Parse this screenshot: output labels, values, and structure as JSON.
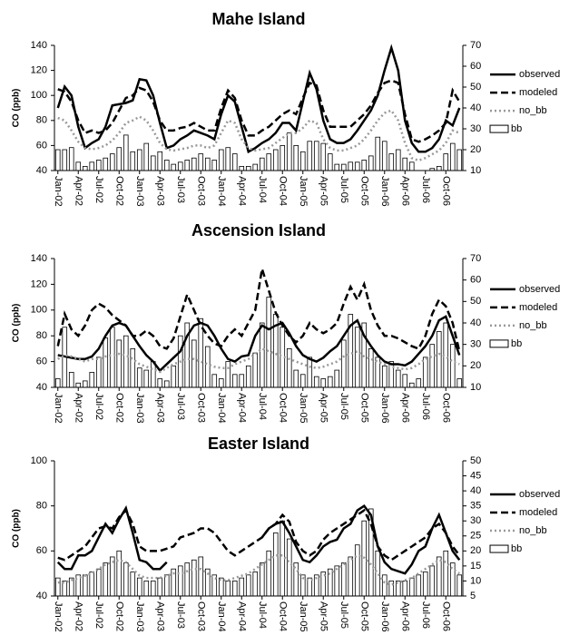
{
  "chart_data": [
    {
      "type": "combo",
      "title": "Mahe Island",
      "y_label": "CO (ppb)",
      "categories": [
        "Jan-02",
        null,
        null,
        "Apr-02",
        null,
        null,
        "Jul-02",
        null,
        null,
        "Oct-02",
        null,
        null,
        "Jan-03",
        null,
        null,
        "Apr-03",
        null,
        null,
        "Jul-03",
        null,
        null,
        "Oct-03",
        null,
        null,
        "Jan-04",
        null,
        null,
        "Apr-04",
        null,
        null,
        "Jul-04",
        null,
        null,
        "Oct-04",
        null,
        null,
        "Jan-05",
        null,
        null,
        "Apr-05",
        null,
        null,
        "Jul-05",
        null,
        null,
        "Oct-05",
        null,
        null,
        "Jan-06",
        null,
        null,
        "Apr-06",
        null,
        null,
        "Jul-06",
        null,
        null,
        "Oct-06",
        null,
        null
      ],
      "ylim": [
        40,
        140
      ],
      "yticks": [
        40,
        60,
        80,
        100,
        120,
        140
      ],
      "y2lim": [
        10,
        70
      ],
      "y2ticks": [
        10,
        20,
        30,
        40,
        50,
        60,
        70
      ],
      "series": [
        {
          "name": "observed",
          "type": "line",
          "line_style": "solid",
          "color": "#000000",
          "values": [
            90,
            107,
            100,
            75,
            58,
            62,
            65,
            75,
            92,
            93,
            94,
            96,
            113,
            112,
            100,
            78,
            58,
            60,
            65,
            68,
            72,
            70,
            68,
            65,
            85,
            100,
            95,
            75,
            55,
            58,
            62,
            65,
            70,
            78,
            78,
            72,
            95,
            118,
            105,
            80,
            65,
            62,
            62,
            65,
            72,
            80,
            88,
            100,
            120,
            138,
            120,
            80,
            62,
            55,
            55,
            58,
            65,
            80,
            76,
            90
          ]
        },
        {
          "name": "modeled",
          "type": "line",
          "line_style": "dashed",
          "color": "#000000",
          "values": [
            105,
            103,
            95,
            80,
            70,
            72,
            70,
            72,
            78,
            88,
            98,
            100,
            106,
            104,
            95,
            80,
            72,
            72,
            74,
            75,
            78,
            75,
            72,
            72,
            90,
            104,
            98,
            80,
            68,
            68,
            72,
            75,
            80,
            85,
            88,
            85,
            98,
            110,
            108,
            88,
            75,
            75,
            75,
            75,
            80,
            85,
            92,
            102,
            110,
            112,
            110,
            85,
            65,
            63,
            65,
            68,
            72,
            78,
            104,
            95
          ]
        },
        {
          "name": "no_bb",
          "type": "line",
          "line_style": "dotted",
          "color": "#999999",
          "values": [
            82,
            80,
            72,
            63,
            58,
            57,
            58,
            60,
            64,
            70,
            78,
            80,
            83,
            80,
            72,
            62,
            57,
            56,
            57,
            58,
            60,
            60,
            58,
            60,
            70,
            80,
            78,
            65,
            58,
            56,
            57,
            58,
            62,
            66,
            70,
            70,
            74,
            80,
            78,
            65,
            58,
            56,
            56,
            58,
            60,
            65,
            72,
            80,
            86,
            88,
            80,
            62,
            50,
            48,
            50,
            53,
            56,
            62,
            72,
            70
          ]
        },
        {
          "name": "bb",
          "type": "bar",
          "axis": "y2",
          "color": "#ffffff",
          "values": [
            20,
            20,
            21,
            14,
            12,
            14,
            15,
            16,
            18,
            21,
            27,
            19,
            20,
            23,
            17,
            19,
            15,
            13,
            14,
            15,
            16,
            18,
            16,
            15,
            20,
            21,
            18,
            12,
            12,
            13,
            16,
            18,
            20,
            22,
            28,
            22,
            19,
            24,
            24,
            23,
            18,
            13,
            13,
            14,
            14,
            15,
            17,
            26,
            24,
            18,
            20,
            16,
            14,
            10,
            10,
            11,
            12,
            18,
            23,
            20
          ]
        }
      ]
    },
    {
      "type": "combo",
      "title": "Ascension Island",
      "y_label": "CO (ppb)",
      "categories": [
        "Jan-02",
        null,
        null,
        "Apr-02",
        null,
        null,
        "Jul-02",
        null,
        null,
        "Oct-02",
        null,
        null,
        "Jan-03",
        null,
        null,
        "Apr-03",
        null,
        null,
        "Jul-03",
        null,
        null,
        "Oct-03",
        null,
        null,
        "Jan-04",
        null,
        null,
        "Apr-04",
        null,
        null,
        "Jul-04",
        null,
        null,
        "Oct-04",
        null,
        null,
        "Jan-05",
        null,
        null,
        "Apr-05",
        null,
        null,
        "Jul-05",
        null,
        null,
        "Oct-05",
        null,
        null,
        "Jan-06",
        null,
        null,
        "Apr-06",
        null,
        null,
        "Jul-06",
        null,
        null,
        "Oct-06",
        null,
        null
      ],
      "ylim": [
        40,
        140
      ],
      "yticks": [
        40,
        60,
        80,
        100,
        120,
        140
      ],
      "y2lim": [
        10,
        70
      ],
      "y2ticks": [
        10,
        20,
        30,
        40,
        50,
        60,
        70
      ],
      "series": [
        {
          "name": "observed",
          "type": "line",
          "line_style": "solid",
          "color": "#000000",
          "values": [
            65,
            64,
            63,
            62,
            62,
            64,
            70,
            80,
            88,
            90,
            88,
            80,
            72,
            65,
            60,
            53,
            58,
            63,
            68,
            80,
            88,
            90,
            88,
            80,
            70,
            62,
            60,
            64,
            65,
            80,
            88,
            85,
            88,
            90,
            82,
            72,
            65,
            62,
            60,
            63,
            68,
            72,
            80,
            88,
            92,
            80,
            72,
            65,
            60,
            58,
            58,
            57,
            60,
            66,
            72,
            80,
            92,
            95,
            80,
            65
          ]
        },
        {
          "name": "modeled",
          "type": "line",
          "line_style": "dashed",
          "color": "#000000",
          "values": [
            72,
            97,
            85,
            80,
            88,
            100,
            105,
            102,
            96,
            92,
            88,
            80,
            80,
            84,
            80,
            72,
            70,
            78,
            95,
            112,
            100,
            88,
            80,
            74,
            72,
            80,
            85,
            80,
            90,
            100,
            132,
            115,
            98,
            88,
            80,
            75,
            80,
            90,
            85,
            82,
            85,
            90,
            105,
            118,
            108,
            120,
            100,
            88,
            80,
            80,
            78,
            75,
            72,
            70,
            80,
            97,
            108,
            103,
            90,
            68
          ]
        },
        {
          "name": "no_bb",
          "type": "line",
          "line_style": "dotted",
          "color": "#999999",
          "values": [
            62,
            65,
            64,
            62,
            60,
            62,
            62,
            64,
            65,
            66,
            65,
            62,
            58,
            56,
            54,
            52,
            55,
            58,
            60,
            62,
            62,
            60,
            58,
            56,
            55,
            55,
            58,
            60,
            62,
            66,
            70,
            68,
            66,
            64,
            62,
            60,
            58,
            56,
            55,
            56,
            58,
            60,
            64,
            66,
            68,
            64,
            62,
            60,
            58,
            56,
            55,
            54,
            55,
            58,
            62,
            64,
            66,
            64,
            60,
            58
          ]
        },
        {
          "name": "bb",
          "type": "bar",
          "axis": "y2",
          "color": "#ffffff",
          "values": [
            14,
            38,
            17,
            12,
            13,
            17,
            24,
            33,
            38,
            32,
            34,
            28,
            19,
            18,
            22,
            14,
            13,
            20,
            34,
            40,
            32,
            42,
            29,
            16,
            14,
            22,
            16,
            16,
            20,
            26,
            40,
            52,
            44,
            38,
            28,
            18,
            16,
            24,
            15,
            14,
            15,
            18,
            32,
            44,
            38,
            40,
            28,
            24,
            20,
            22,
            18,
            16,
            12,
            14,
            24,
            30,
            36,
            40,
            30,
            14
          ]
        }
      ]
    },
    {
      "type": "combo",
      "title": "Easter Island",
      "y_label": "CO (ppb)",
      "categories": [
        "Jan-02",
        null,
        null,
        "Apr-02",
        null,
        null,
        "Jul-02",
        null,
        null,
        "Oct-02",
        null,
        null,
        "Jan-03",
        null,
        null,
        "Apr-03",
        null,
        null,
        "Jul-03",
        null,
        null,
        "Oct-03",
        null,
        null,
        "Jan-04",
        null,
        null,
        "Apr-04",
        null,
        null,
        "Jul-04",
        null,
        null,
        "Oct-04",
        null,
        null,
        "Jan-05",
        null,
        null,
        "Apr-05",
        null,
        null,
        "Jul-05",
        null,
        null,
        "Oct-05",
        null,
        null,
        "Jan-06",
        null,
        null,
        "Apr-06",
        null,
        null,
        "Jul-06",
        null,
        null,
        "Oct-06",
        null,
        null
      ],
      "ylim": [
        40,
        100
      ],
      "yticks": [
        40,
        60,
        80,
        100
      ],
      "y2lim": [
        5,
        50
      ],
      "y2ticks": [
        5,
        10,
        15,
        20,
        25,
        30,
        35,
        40,
        45,
        50
      ],
      "series": [
        {
          "name": "observed",
          "type": "line",
          "line_style": "solid",
          "color": "#000000",
          "values": [
            55,
            52,
            52,
            58,
            58,
            60,
            66,
            72,
            68,
            74,
            79,
            68,
            56,
            55,
            52,
            52,
            55,
            null,
            null,
            null,
            null,
            null,
            null,
            null,
            null,
            null,
            null,
            null,
            null,
            null,
            66,
            70,
            72,
            73,
            68,
            62,
            56,
            55,
            58,
            62,
            64,
            65,
            70,
            72,
            78,
            80,
            76,
            62,
            55,
            52,
            51,
            50,
            54,
            60,
            62,
            70,
            76,
            68,
            60,
            56
          ]
        },
        {
          "name": "modeled",
          "type": "line",
          "line_style": "dashed",
          "color": "#000000",
          "values": [
            57,
            56,
            58,
            60,
            62,
            66,
            70,
            71,
            70,
            75,
            78,
            72,
            62,
            60,
            60,
            60,
            61,
            62,
            66,
            67,
            68,
            70,
            70,
            68,
            64,
            60,
            58,
            60,
            62,
            64,
            66,
            70,
            72,
            76,
            73,
            64,
            60,
            58,
            60,
            65,
            68,
            70,
            72,
            74,
            76,
            78,
            72,
            62,
            58,
            56,
            58,
            60,
            62,
            64,
            66,
            70,
            72,
            68,
            62,
            58
          ]
        },
        {
          "name": "no_bb",
          "type": "line",
          "line_style": "dotted",
          "color": "#999999",
          "values": [
            46,
            46,
            47,
            48,
            49,
            50,
            52,
            54,
            55,
            56,
            55,
            52,
            49,
            48,
            48,
            48,
            49,
            50,
            50,
            51,
            52,
            52,
            50,
            48,
            47,
            47,
            48,
            49,
            50,
            52,
            54,
            56,
            58,
            58,
            55,
            52,
            48,
            47,
            48,
            49,
            50,
            52,
            54,
            56,
            58,
            57,
            54,
            50,
            46,
            45,
            46,
            47,
            48,
            50,
            52,
            54,
            56,
            55,
            52,
            50
          ]
        },
        {
          "name": "bb",
          "type": "bar",
          "axis": "y2",
          "color": "#ffffff",
          "values": [
            11,
            10,
            11,
            12,
            12,
            13,
            14,
            16,
            18,
            20,
            16,
            13,
            11,
            10,
            10,
            11,
            12,
            14,
            15,
            16,
            17,
            18,
            14,
            12,
            11,
            10,
            10,
            11,
            12,
            13,
            16,
            20,
            26,
            30,
            24,
            16,
            12,
            11,
            12,
            13,
            14,
            15,
            16,
            18,
            22,
            30,
            34,
            20,
            12,
            10,
            10,
            10,
            11,
            12,
            13,
            15,
            18,
            20,
            16,
            12
          ]
        }
      ]
    }
  ]
}
